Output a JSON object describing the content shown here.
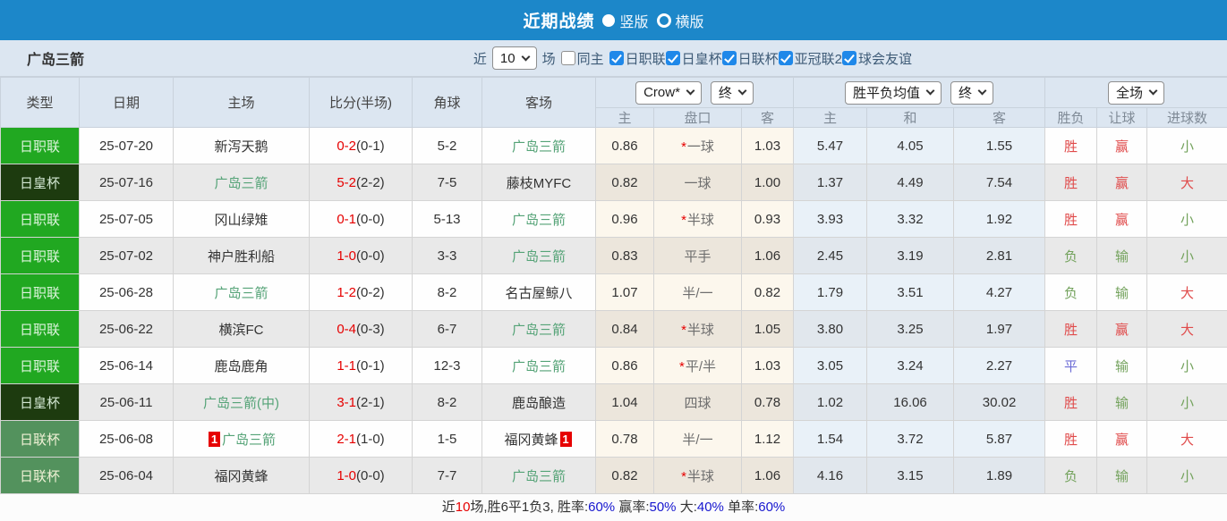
{
  "topbar": {
    "title": "近期战绩",
    "radio_vertical": "竖版",
    "radio_horizontal": "横版"
  },
  "filter": {
    "team": "广岛三箭",
    "near_label": "近",
    "count_value": "10",
    "games_label": "场",
    "same_home_label": "同主",
    "same_home_checked": false,
    "leagues": [
      "日职联",
      "日皇杯",
      "日联杯",
      "亚冠联2",
      "球会友谊"
    ],
    "leagues_checked": [
      true,
      true,
      true,
      true,
      true
    ]
  },
  "header": {
    "cols": [
      "类型",
      "日期",
      "主场",
      "比分(半场)",
      "角球",
      "客场"
    ],
    "odds_company": "Crow*",
    "odds_time": "终",
    "avg_label": "胜平负均值",
    "avg_time": "终",
    "scope": "全场",
    "sub": [
      "主",
      "盘口",
      "客",
      "主",
      "和",
      "客",
      "胜负",
      "让球",
      "进球数"
    ]
  },
  "rows": [
    {
      "league": "日职联",
      "league_key": "j1",
      "date": "25-07-20",
      "home": "新泻天鹅",
      "home_hl": false,
      "home_card": "",
      "score": "0-2",
      "half": "(0-1)",
      "corner": "5-2",
      "away": "广岛三箭",
      "away_hl": true,
      "away_card": "",
      "hc_home": "0.86",
      "hc": "一球",
      "hc_star": true,
      "hc_away": "1.03",
      "avg_home": "5.47",
      "avg_draw": "4.05",
      "avg_away": "1.55",
      "res_wdl": "胜",
      "res_handicap": "赢",
      "res_goals": "小"
    },
    {
      "league": "日皇杯",
      "league_key": "emp",
      "date": "25-07-16",
      "home": "广岛三箭",
      "home_hl": true,
      "home_card": "",
      "score": "5-2",
      "half": "(2-2)",
      "corner": "7-5",
      "away": "藤枝MYFC",
      "away_hl": false,
      "away_card": "",
      "hc_home": "0.82",
      "hc": "一球",
      "hc_star": false,
      "hc_away": "1.00",
      "avg_home": "1.37",
      "avg_draw": "4.49",
      "avg_away": "7.54",
      "res_wdl": "胜",
      "res_handicap": "赢",
      "res_goals": "大"
    },
    {
      "league": "日职联",
      "league_key": "j1",
      "date": "25-07-05",
      "home": "冈山绿雉",
      "home_hl": false,
      "home_card": "",
      "score": "0-1",
      "half": "(0-0)",
      "corner": "5-13",
      "away": "广岛三箭",
      "away_hl": true,
      "away_card": "",
      "hc_home": "0.96",
      "hc": "半球",
      "hc_star": true,
      "hc_away": "0.93",
      "avg_home": "3.93",
      "avg_draw": "3.32",
      "avg_away": "1.92",
      "res_wdl": "胜",
      "res_handicap": "赢",
      "res_goals": "小"
    },
    {
      "league": "日职联",
      "league_key": "j1",
      "date": "25-07-02",
      "home": "神户胜利船",
      "home_hl": false,
      "home_card": "",
      "score": "1-0",
      "half": "(0-0)",
      "corner": "3-3",
      "away": "广岛三箭",
      "away_hl": true,
      "away_card": "",
      "hc_home": "0.83",
      "hc": "平手",
      "hc_star": false,
      "hc_away": "1.06",
      "avg_home": "2.45",
      "avg_draw": "3.19",
      "avg_away": "2.81",
      "res_wdl": "负",
      "res_handicap": "输",
      "res_goals": "小"
    },
    {
      "league": "日职联",
      "league_key": "j1",
      "date": "25-06-28",
      "home": "广岛三箭",
      "home_hl": true,
      "home_card": "",
      "score": "1-2",
      "half": "(0-2)",
      "corner": "8-2",
      "away": "名古屋鲸八",
      "away_hl": false,
      "away_card": "",
      "hc_home": "1.07",
      "hc": "半/一",
      "hc_star": false,
      "hc_away": "0.82",
      "avg_home": "1.79",
      "avg_draw": "3.51",
      "avg_away": "4.27",
      "res_wdl": "负",
      "res_handicap": "输",
      "res_goals": "大"
    },
    {
      "league": "日职联",
      "league_key": "j1",
      "date": "25-06-22",
      "home": "横滨FC",
      "home_hl": false,
      "home_card": "",
      "score": "0-4",
      "half": "(0-3)",
      "corner": "6-7",
      "away": "广岛三箭",
      "away_hl": true,
      "away_card": "",
      "hc_home": "0.84",
      "hc": "半球",
      "hc_star": true,
      "hc_away": "1.05",
      "avg_home": "3.80",
      "avg_draw": "3.25",
      "avg_away": "1.97",
      "res_wdl": "胜",
      "res_handicap": "赢",
      "res_goals": "大"
    },
    {
      "league": "日职联",
      "league_key": "j1",
      "date": "25-06-14",
      "home": "鹿岛鹿角",
      "home_hl": false,
      "home_card": "",
      "score": "1-1",
      "half": "(0-1)",
      "corner": "12-3",
      "away": "广岛三箭",
      "away_hl": true,
      "away_card": "",
      "hc_home": "0.86",
      "hc": "平/半",
      "hc_star": true,
      "hc_away": "1.03",
      "avg_home": "3.05",
      "avg_draw": "3.24",
      "avg_away": "2.27",
      "res_wdl": "平",
      "res_handicap": "输",
      "res_goals": "小"
    },
    {
      "league": "日皇杯",
      "league_key": "emp",
      "date": "25-06-11",
      "home": "广岛三箭(中)",
      "home_hl": true,
      "home_card": "",
      "score": "3-1",
      "half": "(2-1)",
      "corner": "8-2",
      "away": "鹿岛酿造",
      "away_hl": false,
      "away_card": "",
      "hc_home": "1.04",
      "hc": "四球",
      "hc_star": false,
      "hc_away": "0.78",
      "avg_home": "1.02",
      "avg_draw": "16.06",
      "avg_away": "30.02",
      "res_wdl": "胜",
      "res_handicap": "输",
      "res_goals": "小"
    },
    {
      "league": "日联杯",
      "league_key": "lc",
      "date": "25-06-08",
      "home": "广岛三箭",
      "home_hl": true,
      "home_card": "1",
      "score": "2-1",
      "half": "(1-0)",
      "corner": "1-5",
      "away": "福冈黄蜂",
      "away_hl": false,
      "away_card": "1",
      "hc_home": "0.78",
      "hc": "半/一",
      "hc_star": false,
      "hc_away": "1.12",
      "avg_home": "1.54",
      "avg_draw": "3.72",
      "avg_away": "5.87",
      "res_wdl": "胜",
      "res_handicap": "赢",
      "res_goals": "大"
    },
    {
      "league": "日联杯",
      "league_key": "lc",
      "date": "25-06-04",
      "home": "福冈黄蜂",
      "home_hl": false,
      "home_card": "",
      "score": "1-0",
      "half": "(0-0)",
      "corner": "7-7",
      "away": "广岛三箭",
      "away_hl": true,
      "away_card": "",
      "hc_home": "0.82",
      "hc": "半球",
      "hc_star": true,
      "hc_away": "1.06",
      "avg_home": "4.16",
      "avg_draw": "3.15",
      "avg_away": "1.89",
      "res_wdl": "负",
      "res_handicap": "输",
      "res_goals": "小"
    }
  ],
  "footer": {
    "segments": [
      {
        "text": "近",
        "color": "dark"
      },
      {
        "text": "10",
        "color": "red"
      },
      {
        "text": "场,胜6平1负3, 胜率:",
        "color": "dark"
      },
      {
        "text": "60%",
        "color": "blue"
      },
      {
        "text": " 赢率:",
        "color": "dark"
      },
      {
        "text": "50%",
        "color": "blue"
      },
      {
        "text": " 大:",
        "color": "dark"
      },
      {
        "text": "40%",
        "color": "blue"
      },
      {
        "text": " 单率:",
        "color": "dark"
      },
      {
        "text": "60%",
        "color": "blue"
      }
    ]
  },
  "colors": {
    "accent_blue": "#1c87c9",
    "check_blue": "#1f88e9",
    "score_red": "#e60000",
    "team_green": "#55a377",
    "win_red": "#e04b4b",
    "lose_green": "#73a25c",
    "draw_blue": "#6b6bd6",
    "league_j1_bg": "#21a821",
    "league_emp_bg": "#1d3b0f",
    "league_lc_bg": "#53925d"
  }
}
